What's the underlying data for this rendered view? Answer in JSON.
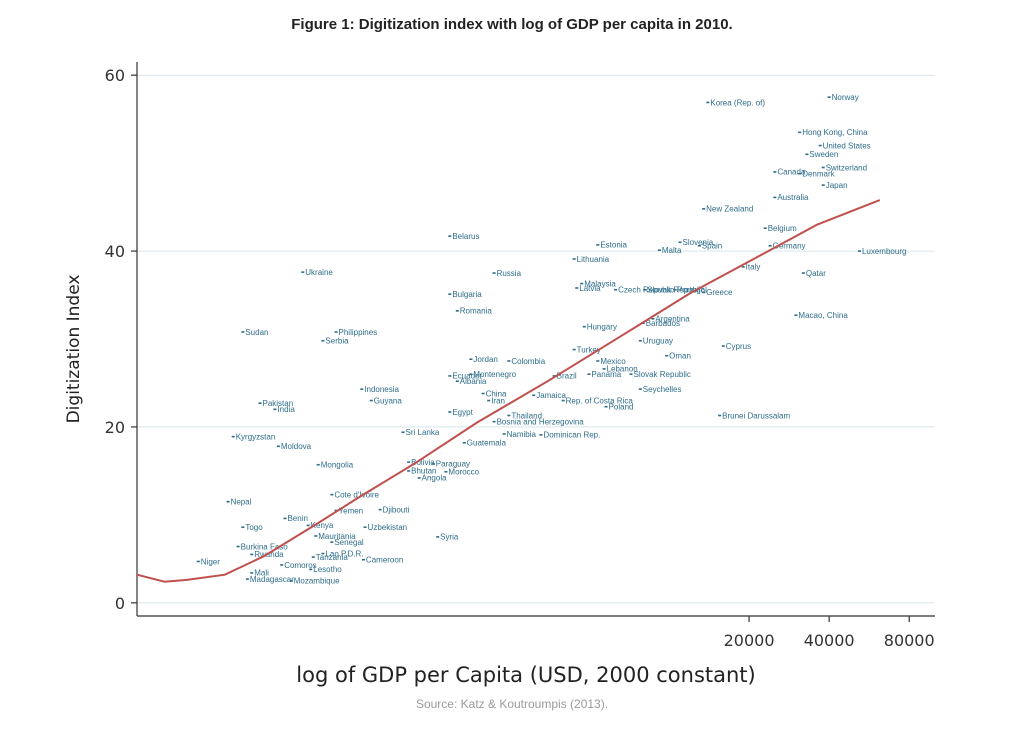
{
  "figure": {
    "title": "Figure 1:  Digitization index with log of GDP per capita in 2010.",
    "source": "Source: Katz & Koutroumpis (2013)."
  },
  "chart_data": {
    "type": "scatter",
    "title": "",
    "xlabel": "log of GDP per Capita (USD, 2000 constant)",
    "ylabel": "Digitization Index",
    "x_scale": "log",
    "xlim": [
      100,
      100000
    ],
    "ylim": [
      -1.5,
      61.5
    ],
    "xticks": [
      20000,
      40000,
      80000
    ],
    "xtick_labels": [
      "20000",
      "40000",
      "80000"
    ],
    "yticks": [
      0,
      20,
      40,
      60
    ],
    "ytick_labels": [
      "0",
      "20",
      "40",
      "60"
    ],
    "grid": "horizontal",
    "point_color": "#2e6d8a",
    "trend_color": "#c0504d",
    "trend": {
      "x": [
        100,
        127,
        154,
        214,
        300,
        470,
        700,
        1100,
        1900,
        3500,
        6500,
        12000,
        22000,
        36000,
        62000
      ],
      "y": [
        3.2,
        2.4,
        2.6,
        3.2,
        5.3,
        8.9,
        12.2,
        15.8,
        20.5,
        25.2,
        30.2,
        35.2,
        39.5,
        43.0,
        45.8
      ]
    },
    "points": [
      {
        "label": "Norway",
        "x": 40000,
        "y": 57.5
      },
      {
        "label": "Korea (Rep. of)",
        "x": 14000,
        "y": 56.9
      },
      {
        "label": "Hong Kong, China",
        "x": 31000,
        "y": 53.5
      },
      {
        "label": "United States",
        "x": 37000,
        "y": 52.0
      },
      {
        "label": "Sweden",
        "x": 33000,
        "y": 51.0
      },
      {
        "label": "Switzerland",
        "x": 38000,
        "y": 49.5
      },
      {
        "label": "Canada",
        "x": 25000,
        "y": 49.0
      },
      {
        "label": "Denmark",
        "x": 31000,
        "y": 48.8
      },
      {
        "label": "Japan",
        "x": 38000,
        "y": 47.5
      },
      {
        "label": "Australia",
        "x": 25000,
        "y": 46.1
      },
      {
        "label": "New Zealand",
        "x": 13500,
        "y": 44.8
      },
      {
        "label": "Belgium",
        "x": 23000,
        "y": 42.6
      },
      {
        "label": "Belarus",
        "x": 1500,
        "y": 41.7
      },
      {
        "label": "Germany",
        "x": 24000,
        "y": 40.6
      },
      {
        "label": "Slovenia",
        "x": 11000,
        "y": 41.0
      },
      {
        "label": "Spain",
        "x": 13000,
        "y": 40.6
      },
      {
        "label": "Estonia",
        "x": 5400,
        "y": 40.7
      },
      {
        "label": "Malta",
        "x": 9200,
        "y": 40.1
      },
      {
        "label": "Luxembourg",
        "x": 52000,
        "y": 40.0
      },
      {
        "label": "Lithuania",
        "x": 4400,
        "y": 39.1
      },
      {
        "label": "Italy",
        "x": 19000,
        "y": 38.2
      },
      {
        "label": "Ukraine",
        "x": 420,
        "y": 37.6
      },
      {
        "label": "Russia",
        "x": 2200,
        "y": 37.5
      },
      {
        "label": "Qatar",
        "x": 32000,
        "y": 37.5
      },
      {
        "label": "Malaysia",
        "x": 4700,
        "y": 36.3
      },
      {
        "label": "Latvia",
        "x": 4500,
        "y": 35.8
      },
      {
        "label": "Czech Republic",
        "x": 6300,
        "y": 35.6
      },
      {
        "label": "Slovak Republic",
        "x": 8100,
        "y": 35.6
      },
      {
        "label": "Portugal",
        "x": 10500,
        "y": 35.6
      },
      {
        "label": "Greece",
        "x": 13500,
        "y": 35.3
      },
      {
        "label": "Bulgaria",
        "x": 1500,
        "y": 35.1
      },
      {
        "label": "Romania",
        "x": 1600,
        "y": 33.2
      },
      {
        "label": "Macao, China",
        "x": 30000,
        "y": 32.7
      },
      {
        "label": "Argentina",
        "x": 8700,
        "y": 32.3
      },
      {
        "label": "Barbados",
        "x": 8000,
        "y": 31.8
      },
      {
        "label": "Hungary",
        "x": 4800,
        "y": 31.4
      },
      {
        "label": "Sudan",
        "x": 250,
        "y": 30.8
      },
      {
        "label": "Philippines",
        "x": 560,
        "y": 30.8
      },
      {
        "label": "Serbia",
        "x": 500,
        "y": 29.8
      },
      {
        "label": "Uruguay",
        "x": 7800,
        "y": 29.8
      },
      {
        "label": "Cyprus",
        "x": 16000,
        "y": 29.2
      },
      {
        "label": "Turkey",
        "x": 4400,
        "y": 28.8
      },
      {
        "label": "Oman",
        "x": 9800,
        "y": 28.1
      },
      {
        "label": "Jordan",
        "x": 1800,
        "y": 27.7
      },
      {
        "label": "Colombia",
        "x": 2500,
        "y": 27.5
      },
      {
        "label": "Mexico",
        "x": 5400,
        "y": 27.5
      },
      {
        "label": "Lebanon",
        "x": 5700,
        "y": 26.6
      },
      {
        "label": "Panama",
        "x": 5000,
        "y": 26.0
      },
      {
        "label": "Slovak Republic",
        "x": 7200,
        "y": 26.0
      },
      {
        "label": "Montenegro",
        "x": 1800,
        "y": 26.0
      },
      {
        "label": "Brazil",
        "x": 3700,
        "y": 25.8
      },
      {
        "label": "Ecuador",
        "x": 1500,
        "y": 25.8
      },
      {
        "label": "Albania",
        "x": 1600,
        "y": 25.2
      },
      {
        "label": "Indonesia",
        "x": 700,
        "y": 24.3
      },
      {
        "label": "Seychelles",
        "x": 7800,
        "y": 24.3
      },
      {
        "label": "China",
        "x": 2000,
        "y": 23.8
      },
      {
        "label": "Jamaica",
        "x": 3100,
        "y": 23.6
      },
      {
        "label": "Guyana",
        "x": 760,
        "y": 23.0
      },
      {
        "label": "Iran",
        "x": 2100,
        "y": 23.0
      },
      {
        "label": "Rep. of Costa Rica",
        "x": 4000,
        "y": 23.0
      },
      {
        "label": "Pakistan",
        "x": 290,
        "y": 22.7
      },
      {
        "label": "Poland",
        "x": 5800,
        "y": 22.3
      },
      {
        "label": "India",
        "x": 330,
        "y": 22.0
      },
      {
        "label": "Egypt",
        "x": 1500,
        "y": 21.7
      },
      {
        "label": "Thailand",
        "x": 2500,
        "y": 21.3
      },
      {
        "label": "Brunei Darussalam",
        "x": 15500,
        "y": 21.3
      },
      {
        "label": "Bosnia and Herzegovina",
        "x": 2200,
        "y": 20.6
      },
      {
        "label": "Sri Lanka",
        "x": 1000,
        "y": 19.4
      },
      {
        "label": "Namibia",
        "x": 2400,
        "y": 19.2
      },
      {
        "label": "Dominican Rep.",
        "x": 3300,
        "y": 19.1
      },
      {
        "label": "Kyrgyzstan",
        "x": 230,
        "y": 18.9
      },
      {
        "label": "Guatemala",
        "x": 1700,
        "y": 18.2
      },
      {
        "label": "Moldova",
        "x": 340,
        "y": 17.8
      },
      {
        "label": "Mongolia",
        "x": 480,
        "y": 15.7
      },
      {
        "label": "Bolivia",
        "x": 1050,
        "y": 16.0
      },
      {
        "label": "Paraguay",
        "x": 1300,
        "y": 15.8
      },
      {
        "label": "Bhutan",
        "x": 1050,
        "y": 15.0
      },
      {
        "label": "Morocco",
        "x": 1450,
        "y": 14.9
      },
      {
        "label": "Angola",
        "x": 1150,
        "y": 14.2
      },
      {
        "label": "Cote d'Ivoire",
        "x": 540,
        "y": 12.3
      },
      {
        "label": "Nepal",
        "x": 220,
        "y": 11.5
      },
      {
        "label": "Yemen",
        "x": 560,
        "y": 10.5
      },
      {
        "label": "Djibouti",
        "x": 820,
        "y": 10.6
      },
      {
        "label": "Benin",
        "x": 360,
        "y": 9.6
      },
      {
        "label": "Kenya",
        "x": 440,
        "y": 8.8
      },
      {
        "label": "Togo",
        "x": 250,
        "y": 8.6
      },
      {
        "label": "Uzbekistan",
        "x": 720,
        "y": 8.6
      },
      {
        "label": "Mauritania",
        "x": 470,
        "y": 7.6
      },
      {
        "label": "Senegal",
        "x": 540,
        "y": 6.9
      },
      {
        "label": "Syria",
        "x": 1350,
        "y": 7.5
      },
      {
        "label": "Burkina Faso",
        "x": 240,
        "y": 6.4
      },
      {
        "label": "Rwanda",
        "x": 270,
        "y": 5.5
      },
      {
        "label": "Lao P.D.R.",
        "x": 500,
        "y": 5.6
      },
      {
        "label": "Tanzania",
        "x": 460,
        "y": 5.2
      },
      {
        "label": "Cameroon",
        "x": 710,
        "y": 4.9
      },
      {
        "label": "Niger",
        "x": 170,
        "y": 4.7
      },
      {
        "label": "Comoros",
        "x": 350,
        "y": 4.3
      },
      {
        "label": "Lesotho",
        "x": 450,
        "y": 3.8
      },
      {
        "label": "Mali",
        "x": 270,
        "y": 3.4
      },
      {
        "label": "Madagascar",
        "x": 260,
        "y": 2.7
      },
      {
        "label": "Mozambique",
        "x": 380,
        "y": 2.5
      }
    ]
  }
}
